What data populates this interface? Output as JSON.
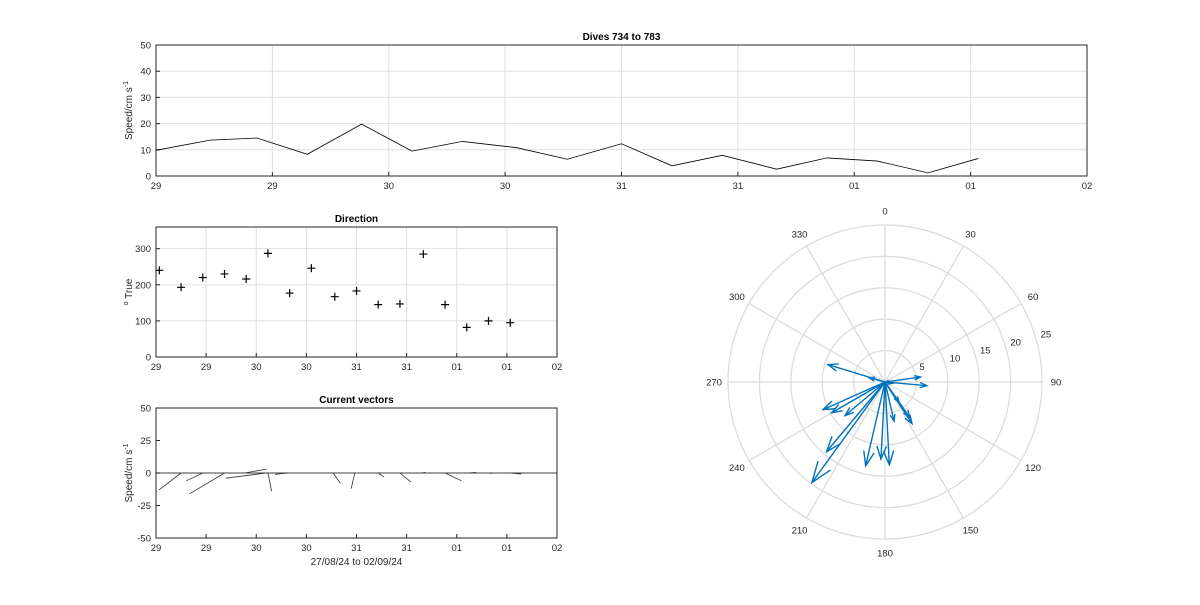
{
  "chart_data": [
    {
      "type": "line",
      "title": "Dives 734 to 783",
      "ylabel": "Speed/cm s",
      "ylabel_sup": "-1",
      "ylim": [
        0,
        50
      ],
      "yticks": [
        0,
        10,
        20,
        30,
        40,
        50
      ],
      "xlim": [
        0,
        12
      ],
      "xtick_labels": [
        "29",
        "29",
        "30",
        "30",
        "31",
        "31",
        "01",
        "01",
        "02"
      ],
      "grid": true,
      "series": [
        {
          "x": [
            0,
            0.7,
            1.3,
            1.95,
            2.65,
            3.3,
            3.95,
            4.65,
            5.3,
            6.0,
            6.65,
            7.3,
            8.0,
            8.65,
            9.3,
            9.95,
            10.6
          ],
          "values": [
            9.8,
            13.7,
            14.5,
            8.3,
            19.8,
            9.5,
            13.2,
            10.8,
            6.4,
            12.3,
            3.9,
            7.9,
            2.6,
            6.9,
            5.7,
            1.2,
            6.7
          ]
        }
      ]
    },
    {
      "type": "scatter",
      "title": "Direction",
      "ylabel": "True",
      "ylabel_sup": "o",
      "ylim": [
        0,
        360
      ],
      "yticks": [
        0,
        100,
        200,
        300
      ],
      "xlim": [
        0,
        12
      ],
      "xtick_labels": [
        "29",
        "29",
        "30",
        "30",
        "31",
        "31",
        "01",
        "01",
        "02"
      ],
      "grid": true,
      "marker": "+",
      "x": [
        0.1,
        0.75,
        1.4,
        2.05,
        2.7,
        3.35,
        4.0,
        4.65,
        5.35,
        6.0,
        6.65,
        7.3,
        8.0,
        8.65,
        9.3,
        9.95,
        10.6
      ],
      "values": [
        240,
        193,
        220,
        230,
        216,
        287,
        177,
        246,
        167,
        183,
        145,
        147,
        285,
        145,
        82,
        100,
        95
      ]
    },
    {
      "type": "line",
      "title": "Current vectors",
      "ylabel": "Speed/cm s",
      "ylabel_sup": "-1",
      "xlabel": "27/08/24 to 02/09/24",
      "ylim": [
        -50,
        50
      ],
      "yticks": [
        -50,
        -25,
        0,
        25,
        50
      ],
      "xlim": [
        0,
        12
      ],
      "xtick_labels": [
        "29",
        "29",
        "30",
        "30",
        "31",
        "31",
        "01",
        "01",
        "02"
      ],
      "grid": false,
      "note": "stick plot; each vector from (x,0) with components (dx,dy) in speed units",
      "vectors": [
        {
          "x": 0.75,
          "dx": -1.2,
          "dy": -13
        },
        {
          "x": 1.4,
          "dx": -0.9,
          "dy": -6
        },
        {
          "x": 2.05,
          "dx": -1.9,
          "dy": -16
        },
        {
          "x": 2.65,
          "dx": 1.2,
          "dy": 3
        },
        {
          "x": 3.3,
          "dx": -2.2,
          "dy": -4
        },
        {
          "x": 3.35,
          "dx": 0.2,
          "dy": -14
        },
        {
          "x": 3.95,
          "dx": -0.7,
          "dy": -1
        },
        {
          "x": 5.3,
          "dx": 0.4,
          "dy": -8
        },
        {
          "x": 5.95,
          "dx": -0.2,
          "dy": -12
        },
        {
          "x": 6.65,
          "dx": 0.3,
          "dy": -3
        },
        {
          "x": 7.3,
          "dx": 0.6,
          "dy": -7
        },
        {
          "x": 7.95,
          "dx": 0.2,
          "dy": 0.5
        },
        {
          "x": 8.65,
          "dx": 0.9,
          "dy": -6
        },
        {
          "x": 9.35,
          "dx": 0.4,
          "dy": 0.5
        },
        {
          "x": 10.0,
          "dx": 0.1,
          "dy": -0.5
        },
        {
          "x": 10.6,
          "dx": 0.6,
          "dy": -0.8
        }
      ]
    },
    {
      "type": "scatter",
      "subtype": "compass",
      "rlim": [
        0,
        25
      ],
      "rticks": [
        5,
        10,
        15,
        20,
        25
      ],
      "theta_labels": [
        "0",
        "30",
        "60",
        "90",
        "120",
        "150",
        "180",
        "210",
        "240",
        "270",
        "300",
        "330"
      ],
      "color": "#0072BD",
      "arrows": [
        {
          "dir": 240,
          "speed": 9.8
        },
        {
          "dir": 193,
          "speed": 13.7
        },
        {
          "dir": 220,
          "speed": 14.5
        },
        {
          "dir": 230,
          "speed": 8.3
        },
        {
          "dir": 216,
          "speed": 19.8
        },
        {
          "dir": 287,
          "speed": 9.5
        },
        {
          "dir": 177,
          "speed": 13.2
        },
        {
          "dir": 246,
          "speed": 10.8
        },
        {
          "dir": 167,
          "speed": 6.4
        },
        {
          "dir": 183,
          "speed": 12.3
        },
        {
          "dir": 145,
          "speed": 3.9
        },
        {
          "dir": 147,
          "speed": 7.9
        },
        {
          "dir": 285,
          "speed": 2.6
        },
        {
          "dir": 145,
          "speed": 6.9
        },
        {
          "dir": 82,
          "speed": 5.7
        },
        {
          "dir": 100,
          "speed": 1.2
        },
        {
          "dir": 95,
          "speed": 6.7
        }
      ]
    }
  ]
}
